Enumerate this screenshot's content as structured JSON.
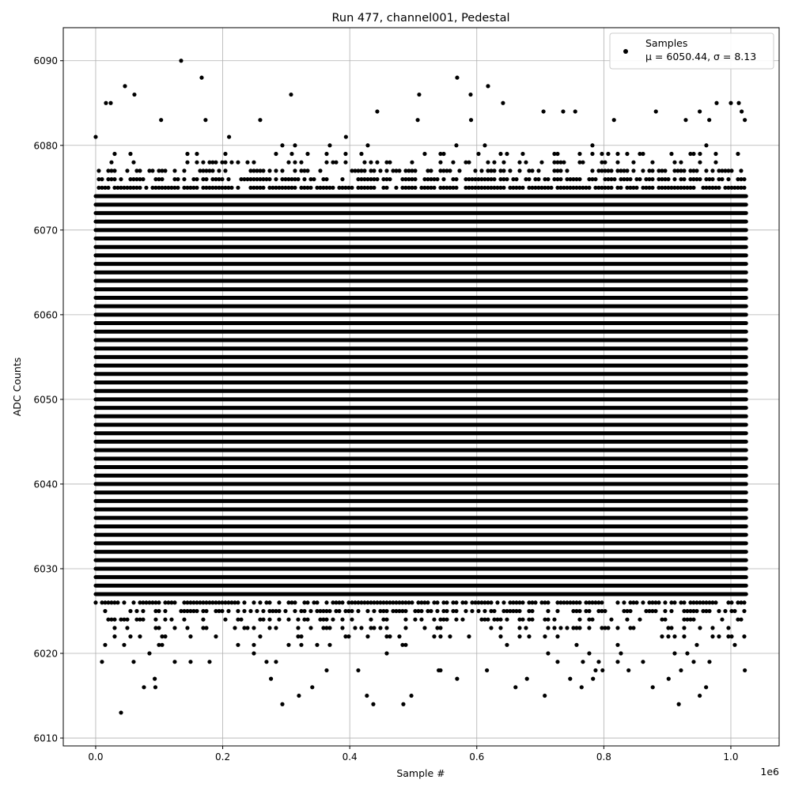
{
  "chart_data": {
    "type": "scatter",
    "title": "Run 477, channel001, Pedestal",
    "xlabel": "Sample #",
    "ylabel": "ADC Counts",
    "x_offset_label": "1e6",
    "xlim": [
      -51000,
      1076000
    ],
    "ylim": [
      6009.07,
      6093.9
    ],
    "x_ticks": [
      0,
      200000,
      400000,
      600000,
      800000,
      1000000
    ],
    "x_tick_labels": [
      "0.0",
      "0.2",
      "0.4",
      "0.6",
      "0.8",
      "1.0"
    ],
    "y_ticks": [
      6010,
      6020,
      6030,
      6040,
      6050,
      6060,
      6070,
      6080,
      6090
    ],
    "y_tick_labels": [
      "6010",
      "6020",
      "6030",
      "6040",
      "6050",
      "6060",
      "6070",
      "6080",
      "6090"
    ],
    "grid": true,
    "legend": {
      "placement": "top-right",
      "entries": [
        {
          "name": "Samples",
          "stats": "μ = 6050.44, σ = 8.13"
        }
      ]
    },
    "marker_color": "#000000",
    "x_range_of_samples": [
      0,
      1024000
    ],
    "dense_levels": [
      6027,
      6074
    ],
    "sparse_levels": [
      {
        "y": 6080,
        "density": 0.08
      },
      {
        "y": 6079,
        "density": 0.15
      },
      {
        "y": 6078,
        "density": 0.3
      },
      {
        "y": 6077,
        "density": 0.5
      },
      {
        "y": 6076,
        "density": 0.65
      },
      {
        "y": 6075,
        "density": 0.85
      },
      {
        "y": 6026,
        "density": 0.75
      },
      {
        "y": 6025,
        "density": 0.5
      },
      {
        "y": 6024,
        "density": 0.35
      },
      {
        "y": 6023,
        "density": 0.25
      },
      {
        "y": 6022,
        "density": 0.12
      },
      {
        "y": 6021,
        "density": 0.1
      },
      {
        "y": 6020,
        "density": 0.06
      },
      {
        "y": 6019,
        "density": 0.04
      },
      {
        "y": 6018,
        "density": 0.02
      }
    ],
    "outliers": [
      {
        "x": 0,
        "y": 6081
      },
      {
        "x": 134500,
        "y": 6090
      },
      {
        "x": 39900,
        "y": 6013
      },
      {
        "x": 166900,
        "y": 6088
      },
      {
        "x": 569100,
        "y": 6088
      },
      {
        "x": 293900,
        "y": 6014
      },
      {
        "x": 437100,
        "y": 6014
      },
      {
        "x": 484400,
        "y": 6014
      },
      {
        "x": 307600,
        "y": 6086
      },
      {
        "x": 61000,
        "y": 6086
      },
      {
        "x": 46100,
        "y": 6087
      },
      {
        "x": 16200,
        "y": 6085
      },
      {
        "x": 23700,
        "y": 6085
      },
      {
        "x": 617700,
        "y": 6087
      },
      {
        "x": 590300,
        "y": 6086
      },
      {
        "x": 509300,
        "y": 6086
      },
      {
        "x": 641300,
        "y": 6085
      },
      {
        "x": 443300,
        "y": 6084
      },
      {
        "x": 977600,
        "y": 6085
      },
      {
        "x": 1012500,
        "y": 6085
      },
      {
        "x": 1000000,
        "y": 6085
      },
      {
        "x": 951000,
        "y": 6084
      },
      {
        "x": 707000,
        "y": 6015
      },
      {
        "x": 951000,
        "y": 6015
      },
      {
        "x": 918000,
        "y": 6014
      },
      {
        "x": 427000,
        "y": 6015
      },
      {
        "x": 320000,
        "y": 6015
      },
      {
        "x": 76000,
        "y": 6016
      },
      {
        "x": 93000,
        "y": 6017
      },
      {
        "x": 497000,
        "y": 6015
      },
      {
        "x": 877000,
        "y": 6016
      },
      {
        "x": 961000,
        "y": 6016
      },
      {
        "x": 902000,
        "y": 6017
      },
      {
        "x": 783000,
        "y": 6017
      },
      {
        "x": 569000,
        "y": 6017
      },
      {
        "x": 679000,
        "y": 6017
      },
      {
        "x": 341000,
        "y": 6016
      },
      {
        "x": 276000,
        "y": 6017
      },
      {
        "x": 661000,
        "y": 6016
      },
      {
        "x": 765000,
        "y": 6016
      },
      {
        "x": 747000,
        "y": 6017
      },
      {
        "x": 210000,
        "y": 6081
      },
      {
        "x": 394000,
        "y": 6081
      },
      {
        "x": 173000,
        "y": 6083
      },
      {
        "x": 103000,
        "y": 6083
      },
      {
        "x": 507000,
        "y": 6083
      },
      {
        "x": 816000,
        "y": 6083
      },
      {
        "x": 736000,
        "y": 6084
      },
      {
        "x": 755000,
        "y": 6084
      },
      {
        "x": 705000,
        "y": 6084
      },
      {
        "x": 882000,
        "y": 6084
      },
      {
        "x": 929000,
        "y": 6083
      },
      {
        "x": 966000,
        "y": 6083
      },
      {
        "x": 591000,
        "y": 6083
      },
      {
        "x": 259000,
        "y": 6083
      },
      {
        "x": 1017000,
        "y": 6084
      },
      {
        "x": 1022000,
        "y": 6083
      },
      {
        "x": 1022000,
        "y": 6018
      },
      {
        "x": 798000,
        "y": 6018
      },
      {
        "x": 839000,
        "y": 6018
      },
      {
        "x": 616000,
        "y": 6018
      },
      {
        "x": 540000,
        "y": 6018
      },
      {
        "x": 94000,
        "y": 6016
      }
    ]
  }
}
